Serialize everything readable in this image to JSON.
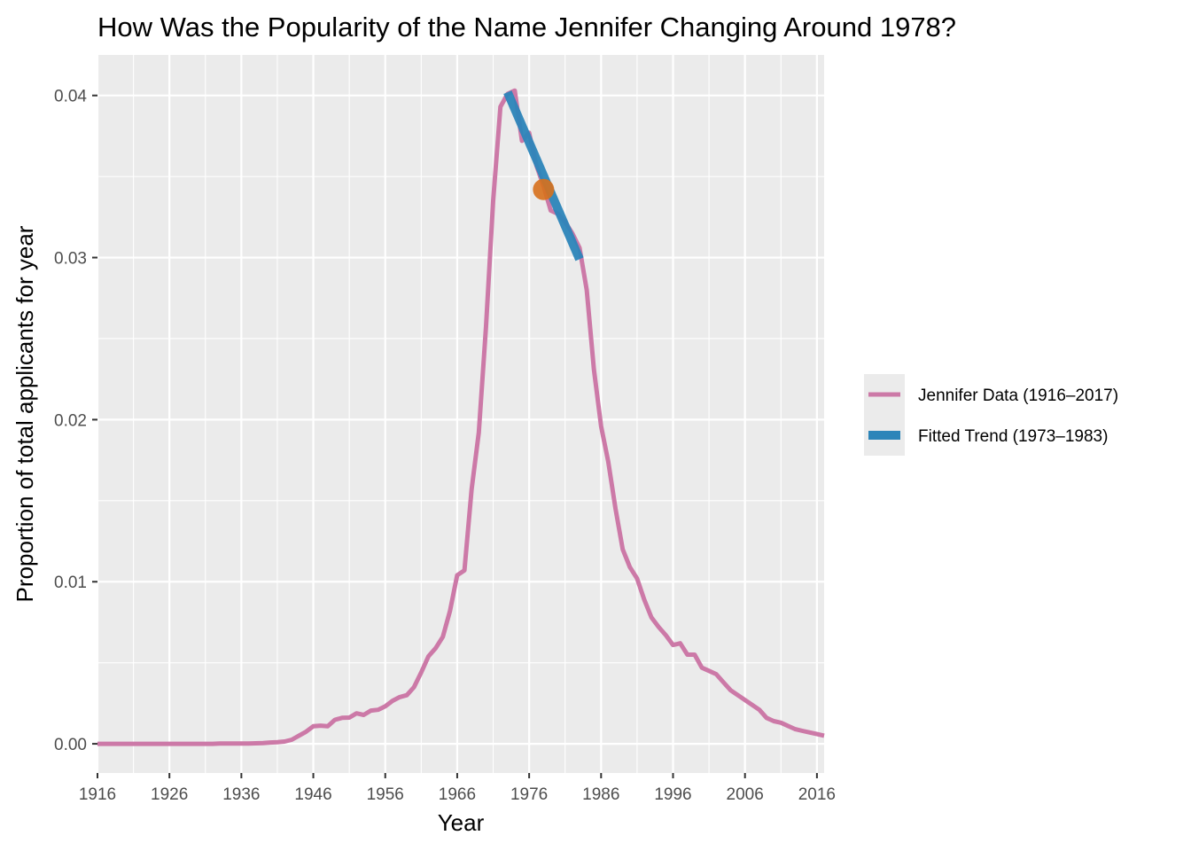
{
  "chart_data": {
    "type": "line",
    "title": "How Was the Popularity of the Name Jennifer Changing Around 1978?",
    "xlabel": "Year",
    "ylabel": "Proportion of total applicants for year",
    "xlim": [
      1916,
      2017
    ],
    "ylim": [
      -0.0018,
      0.0425
    ],
    "x_ticks": [
      1916,
      1926,
      1936,
      1946,
      1956,
      1966,
      1976,
      1986,
      1996,
      2006,
      2016
    ],
    "x_tick_labels": [
      "1916",
      "1926",
      "1936",
      "1946",
      "1956",
      "1966",
      "1976",
      "1986",
      "1996",
      "2006",
      "2016"
    ],
    "y_ticks": [
      0.0,
      0.01,
      0.02,
      0.03,
      0.04
    ],
    "y_tick_labels": [
      "0.00",
      "0.01",
      "0.02",
      "0.03",
      "0.04"
    ],
    "grid": true,
    "legend_position": "right",
    "series": [
      {
        "name": "Jennifer Data (1916–2017)",
        "color": "#cc79a7",
        "x": [
          1916,
          1917,
          1918,
          1919,
          1920,
          1921,
          1922,
          1923,
          1924,
          1925,
          1926,
          1927,
          1928,
          1929,
          1930,
          1931,
          1932,
          1933,
          1934,
          1935,
          1936,
          1937,
          1938,
          1939,
          1940,
          1941,
          1942,
          1943,
          1944,
          1945,
          1946,
          1947,
          1948,
          1949,
          1950,
          1951,
          1952,
          1953,
          1954,
          1955,
          1956,
          1957,
          1958,
          1959,
          1960,
          1961,
          1962,
          1963,
          1964,
          1965,
          1966,
          1967,
          1968,
          1969,
          1970,
          1971,
          1972,
          1973,
          1974,
          1975,
          1976,
          1977,
          1978,
          1979,
          1980,
          1981,
          1982,
          1983,
          1984,
          1985,
          1986,
          1987,
          1988,
          1989,
          1990,
          1991,
          1992,
          1993,
          1994,
          1995,
          1996,
          1997,
          1998,
          1999,
          2000,
          2001,
          2002,
          2003,
          2004,
          2005,
          2006,
          2007,
          2008,
          2009,
          2010,
          2011,
          2012,
          2013,
          2014,
          2015,
          2016,
          2017
        ],
        "values": [
          0.0,
          0.0,
          0.0,
          0.0,
          0.0,
          0.0,
          0.0,
          0.0,
          0.0,
          0.0,
          0.0,
          0.0,
          0.0,
          0.0,
          0.0,
          0.0,
          0.0,
          2e-05,
          2e-05,
          2e-05,
          2e-05,
          2e-05,
          3e-05,
          5e-05,
          8e-05,
          0.0001,
          0.00014,
          0.00025,
          0.0005,
          0.00075,
          0.00108,
          0.00112,
          0.00108,
          0.00148,
          0.0016,
          0.00162,
          0.00188,
          0.00178,
          0.00205,
          0.0021,
          0.00232,
          0.00265,
          0.00288,
          0.003,
          0.0035,
          0.0044,
          0.0054,
          0.0059,
          0.0066,
          0.0082,
          0.0104,
          0.0107,
          0.0157,
          0.0192,
          0.0257,
          0.0335,
          0.0393,
          0.0401,
          0.0403,
          0.0372,
          0.0377,
          0.0357,
          0.0344,
          0.0329,
          0.0327,
          0.0322,
          0.0315,
          0.0306,
          0.028,
          0.0231,
          0.0196,
          0.0174,
          0.0145,
          0.012,
          0.0109,
          0.0102,
          0.0089,
          0.0078,
          0.0072,
          0.0067,
          0.0061,
          0.0062,
          0.0055,
          0.0055,
          0.0047,
          0.0045,
          0.0043,
          0.0038,
          0.0033,
          0.003,
          0.0027,
          0.0024,
          0.0021,
          0.0016,
          0.0014,
          0.0013,
          0.0011,
          0.0009,
          0.0008,
          0.0007,
          0.0006,
          0.0005
        ]
      },
      {
        "name": "Fitted Trend (1973–1983)",
        "color": "#2c85b9",
        "x": [
          1973,
          1983
        ],
        "values": [
          0.0402,
          0.0299
        ]
      }
    ],
    "highlight_point": {
      "x": 1978,
      "y": 0.0342,
      "color": "#d7701c"
    }
  }
}
